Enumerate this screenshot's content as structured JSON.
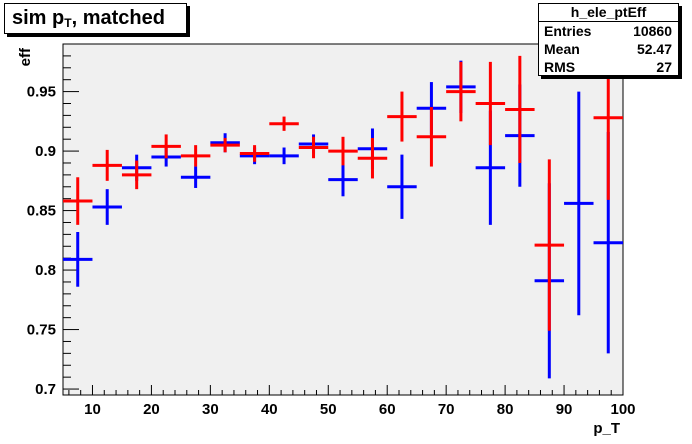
{
  "title": {
    "prefix": "sim p",
    "sub": "T",
    "suffix": ", matched"
  },
  "stats": {
    "name": "h_ele_ptEff",
    "rows": [
      {
        "label": "Entries",
        "value": "10860"
      },
      {
        "label": "Mean",
        "value": "52.47"
      },
      {
        "label": "RMS",
        "value": "27"
      }
    ]
  },
  "colors": {
    "frame_bg": "#f0f0f0",
    "axis": "#000000"
  },
  "chart_data": {
    "type": "scatter",
    "xlabel": "p_T",
    "ylabel": "eff",
    "xlim": [
      5,
      100
    ],
    "ylim": [
      0.695,
      0.99
    ],
    "x_ticks": [
      10,
      20,
      30,
      40,
      50,
      60,
      70,
      80,
      90,
      100
    ],
    "y_ticks": [
      0.7,
      0.75,
      0.8,
      0.85,
      0.9,
      0.95
    ],
    "y_tick_labels": [
      "0.7",
      "0.75",
      "0.8",
      "0.85",
      "0.9",
      "0.95"
    ],
    "grid": false,
    "x_error_halfwidth": 2.5,
    "series": [
      {
        "color": "#0000ff",
        "points": [
          {
            "x": 7.5,
            "y": 0.809,
            "err": 0.023
          },
          {
            "x": 12.5,
            "y": 0.853,
            "err": 0.015
          },
          {
            "x": 17.5,
            "y": 0.886,
            "err": 0.011
          },
          {
            "x": 22.5,
            "y": 0.895,
            "err": 0.008
          },
          {
            "x": 27.5,
            "y": 0.878,
            "err": 0.009
          },
          {
            "x": 32.5,
            "y": 0.907,
            "err": 0.008
          },
          {
            "x": 37.5,
            "y": 0.896,
            "err": 0.007
          },
          {
            "x": 42.5,
            "y": 0.896,
            "err": 0.007
          },
          {
            "x": 47.5,
            "y": 0.906,
            "err": 0.008
          },
          {
            "x": 52.5,
            "y": 0.876,
            "err": 0.014
          },
          {
            "x": 57.5,
            "y": 0.902,
            "err": 0.017
          },
          {
            "x": 62.5,
            "y": 0.87,
            "err": 0.027
          },
          {
            "x": 67.5,
            "y": 0.936,
            "err": 0.022
          },
          {
            "x": 72.5,
            "y": 0.954,
            "err": 0.022
          },
          {
            "x": 77.5,
            "y": 0.886,
            "err": 0.048
          },
          {
            "x": 82.5,
            "y": 0.913,
            "err": 0.043
          },
          {
            "x": 87.5,
            "y": 0.791,
            "err": 0.082
          },
          {
            "x": 92.5,
            "y": 0.856,
            "err": 0.094
          },
          {
            "x": 97.5,
            "y": 0.823,
            "err": 0.093
          }
        ]
      },
      {
        "color": "#ff0000",
        "points": [
          {
            "x": 7.5,
            "y": 0.858,
            "err": 0.02
          },
          {
            "x": 12.5,
            "y": 0.888,
            "err": 0.013
          },
          {
            "x": 17.5,
            "y": 0.88,
            "err": 0.012
          },
          {
            "x": 22.5,
            "y": 0.904,
            "err": 0.01
          },
          {
            "x": 27.5,
            "y": 0.896,
            "err": 0.009
          },
          {
            "x": 32.5,
            "y": 0.905,
            "err": 0.006
          },
          {
            "x": 37.5,
            "y": 0.898,
            "err": 0.007
          },
          {
            "x": 42.5,
            "y": 0.923,
            "err": 0.006
          },
          {
            "x": 47.5,
            "y": 0.903,
            "err": 0.009
          },
          {
            "x": 52.5,
            "y": 0.9,
            "err": 0.012
          },
          {
            "x": 57.5,
            "y": 0.894,
            "err": 0.017
          },
          {
            "x": 62.5,
            "y": 0.929,
            "err": 0.021
          },
          {
            "x": 67.5,
            "y": 0.912,
            "err": 0.025
          },
          {
            "x": 72.5,
            "y": 0.95,
            "err": 0.025
          },
          {
            "x": 77.5,
            "y": 0.94,
            "err": 0.035
          },
          {
            "x": 82.5,
            "y": 0.935,
            "err": 0.045
          },
          {
            "x": 87.5,
            "y": 0.821,
            "err": 0.072
          },
          {
            "x": 97.5,
            "y": 0.928,
            "err": 0.069
          }
        ]
      }
    ]
  }
}
